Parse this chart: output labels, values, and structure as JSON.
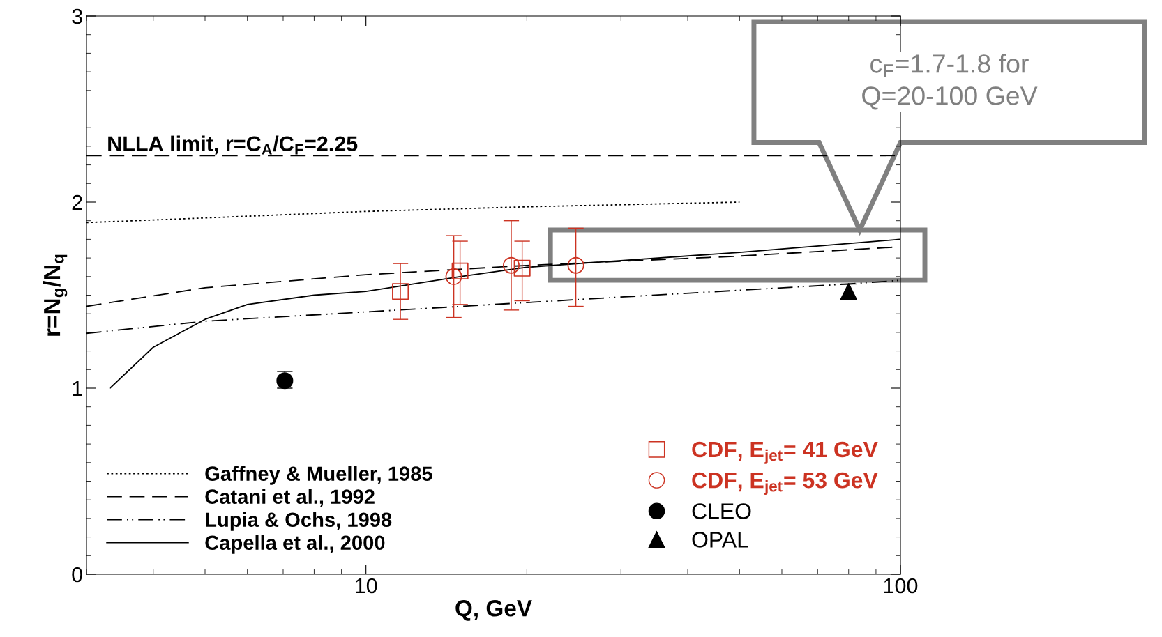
{
  "chart_data": {
    "type": "line",
    "xlabel": "Q, GeV",
    "ylabel": "r=N$_{g}$/N$_{q}$",
    "log": "x",
    "xlim": [
      3,
      100
    ],
    "xticks": [
      10,
      100
    ],
    "ylim": [
      0,
      3
    ],
    "yticks": [
      0,
      1,
      2,
      3
    ],
    "grid": false,
    "legend": "bottom",
    "marker": "none",
    "series": [
      {
        "name": "Gaffney & Mueller, 1985",
        "color": "#000000",
        "line_style": "dotted",
        "x": [
          3,
          5,
          10,
          20,
          50
        ],
        "values": [
          1.89,
          1.915,
          1.95,
          1.975,
          2.0
        ]
      },
      {
        "name": "Catani et al., 1992",
        "color": "#000000",
        "line_style": "dashed",
        "x": [
          3,
          5,
          10,
          20,
          50,
          100
        ],
        "values": [
          1.44,
          1.54,
          1.61,
          1.66,
          1.71,
          1.76
        ]
      },
      {
        "name": "Lupia & Ochs, 1998",
        "color": "#000000",
        "line_style": "dashdotdot",
        "x": [
          3,
          5,
          10,
          30,
          80,
          100
        ],
        "values": [
          1.295,
          1.36,
          1.41,
          1.49,
          1.56,
          1.58
        ]
      },
      {
        "name": "Capella et al., 2000",
        "color": "#000000",
        "line_style": "solid",
        "x": [
          3.32,
          4,
          5,
          6,
          8,
          10,
          15,
          20,
          25,
          50,
          100
        ],
        "values": [
          1.0,
          1.22,
          1.37,
          1.45,
          1.5,
          1.52,
          1.6,
          1.65,
          1.67,
          1.73,
          1.8
        ]
      },
      {
        "name": "CDF, E$_{jet}$= 41 GeV",
        "type": "scatter",
        "marker": "square",
        "color": "#cc3322",
        "x": [
          11.6,
          15.0,
          19.6
        ],
        "values": [
          1.52,
          1.63,
          1.645
        ],
        "errors": [
          [
            1.37,
            1.67
          ],
          [
            1.45,
            1.79
          ],
          [
            1.47,
            1.79
          ]
        ]
      },
      {
        "name": "CDF, E$_{jet}$= 53 GeV",
        "type": "scatter",
        "marker": "circle",
        "color": "#cc3322",
        "x": [
          14.6,
          18.7,
          24.7
        ],
        "values": [
          1.6,
          1.66,
          1.66
        ],
        "errors": [
          [
            1.38,
            1.82
          ],
          [
            1.42,
            1.9
          ],
          [
            1.44,
            1.86
          ]
        ]
      },
      {
        "name": "CLEO",
        "type": "scatter",
        "marker": "circle",
        "color": "#000000",
        "x": [
          7.05
        ],
        "values": [
          1.04
        ],
        "errors": [
          [
            1.0,
            1.09
          ]
        ]
      },
      {
        "name": "OPAL",
        "type": "scatter",
        "marker": "triangle",
        "color": "#000000",
        "x": [
          80
        ],
        "values": [
          1.52
        ],
        "errors": [
          [
            1.48,
            1.56
          ]
        ]
      }
    ],
    "ref_lines": [
      {
        "axis": "y",
        "value": 2.25,
        "label": "NLLA limit, r=C$_{A}$/C$_{F}$=2.25",
        "color": "#000000",
        "line_style": "dashed"
      }
    ],
    "annotations": [
      "c$_{F}$=1.7-1.8 for\nQ=20-100 GeV"
    ]
  }
}
